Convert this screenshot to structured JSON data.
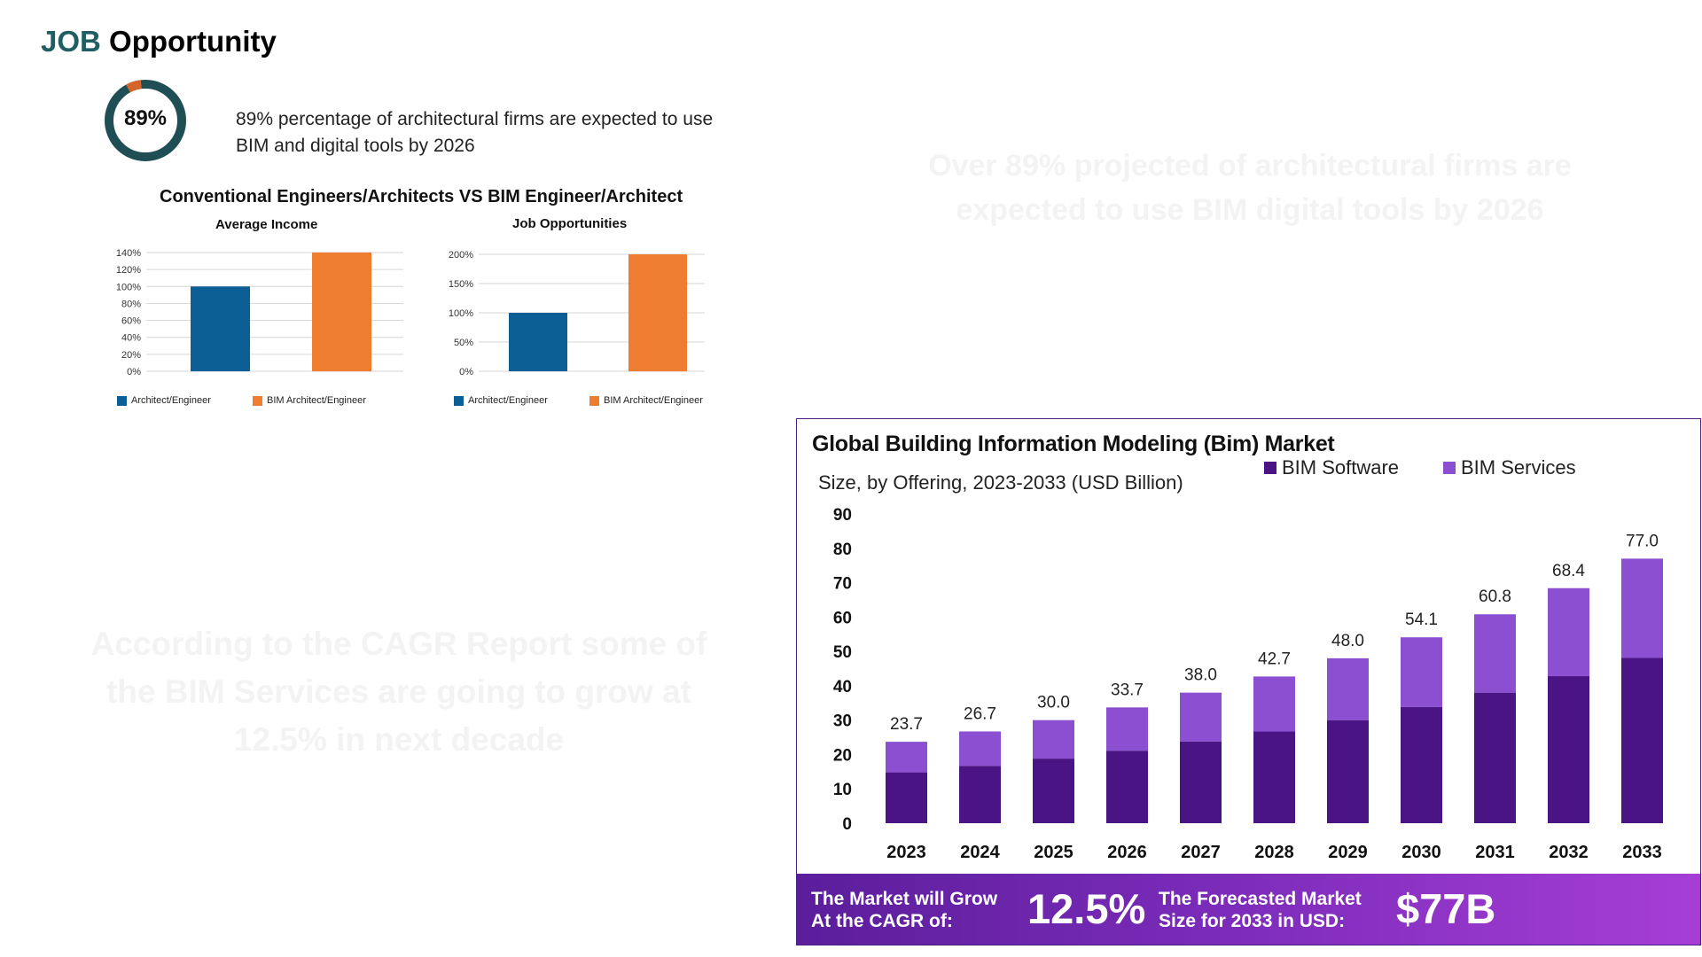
{
  "header": {
    "title_accent": "JOB",
    "title_rest": "Opportunity"
  },
  "stat": {
    "percent_label": "89%",
    "percent_value": 89,
    "description": "89% percentage of architectural firms are expected to use BIM and digital tools by 2026",
    "ring_color": "#1f4f54",
    "accent_color": "#d4652a"
  },
  "comparison": {
    "title": "Conventional Engineers/Architects VS BIM Engineer/Architect",
    "colors": {
      "Architect/Engineer": "#0b5f95",
      "BIM Architect/Engineer": "#ee7d30"
    }
  },
  "ghost_text": {
    "right": "Over 89% projected of architectural firms are expected to use BIM digital tools by 2026",
    "left": "According to the CAGR Report some of the BIM Services are going to grow at 12.5% in next decade"
  },
  "market": {
    "title": "Global Building Information Modeling (Bim) Market",
    "subtitle": "Size, by Offering, 2023-2033 (USD Billion)",
    "colors": {
      "BIM Software": "#4a1484",
      "BIM Services": "#8c4fd1"
    },
    "banner": {
      "cagr_text_1": "The Market will Grow",
      "cagr_text_2": "At the CAGR of:",
      "cagr_value": "12.5%",
      "forecast_text_1": "The Forecasted Market",
      "forecast_text_2": "Size for 2033 in USD:",
      "forecast_value": "$77B"
    }
  },
  "chart_data": [
    {
      "type": "bar",
      "title": "Average Income",
      "categories": [
        "Architect/Engineer",
        "BIM Architect/Engineer"
      ],
      "values": [
        100,
        140
      ],
      "ylim": [
        0,
        140
      ],
      "yticks": [
        "0%",
        "20%",
        "40%",
        "60%",
        "80%",
        "100%",
        "120%",
        "140%"
      ],
      "legend": [
        "Architect/Engineer",
        "BIM Architect/Engineer"
      ],
      "legend_position": "bottom"
    },
    {
      "type": "bar",
      "title": "Job Opportunities",
      "categories": [
        "Architect/Engineer",
        "BIM Architect/Engineer"
      ],
      "values": [
        100,
        200
      ],
      "ylim": [
        0,
        200
      ],
      "yticks": [
        "0%",
        "50%",
        "100%",
        "150%",
        "200%"
      ],
      "legend": [
        "Architect/Engineer",
        "BIM Architect/Engineer"
      ],
      "legend_position": "bottom"
    },
    {
      "type": "bar",
      "stacked": true,
      "title": "Global Building Information Modeling (Bim) Market",
      "subtitle": "Size, by Offering, 2023-2033 (USD Billion)",
      "categories": [
        "2023",
        "2024",
        "2025",
        "2026",
        "2027",
        "2028",
        "2029",
        "2030",
        "2031",
        "2032",
        "2033"
      ],
      "series": [
        {
          "name": "BIM Software",
          "values": [
            14.8,
            16.7,
            18.8,
            21.1,
            23.8,
            26.7,
            30.0,
            33.8,
            38.0,
            42.8,
            48.1
          ]
        },
        {
          "name": "BIM Services",
          "values": [
            8.9,
            10.0,
            11.2,
            12.6,
            14.2,
            16.0,
            18.0,
            20.3,
            22.8,
            25.6,
            28.9
          ]
        }
      ],
      "totals": [
        "23.7",
        "26.7",
        "30.0",
        "33.7",
        "38.0",
        "42.7",
        "48.0",
        "54.1",
        "60.8",
        "68.4",
        "77.0"
      ],
      "ylim": [
        0,
        90
      ],
      "yticks": [
        "0",
        "10",
        "20",
        "30",
        "40",
        "50",
        "60",
        "70",
        "80",
        "90"
      ],
      "legend_position": "top-right"
    }
  ]
}
